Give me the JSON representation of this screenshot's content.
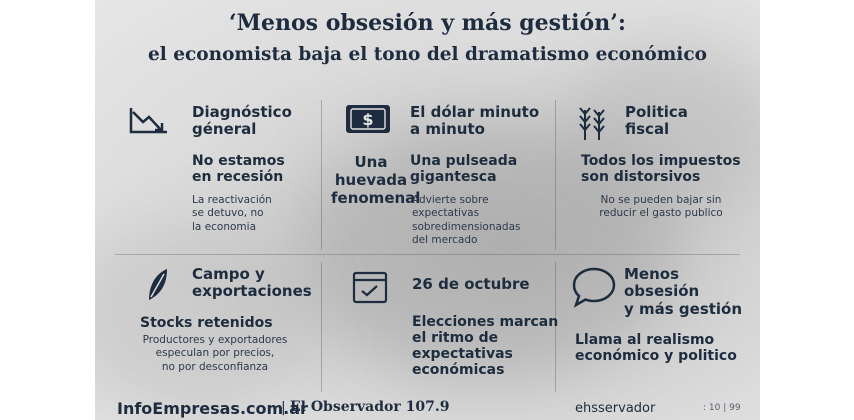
{
  "header": {
    "title": "‘Menos obsesión y más gestión’:",
    "subtitle": "el economista baja el tono del dramatismo económico"
  },
  "panels": {
    "diagnostico": {
      "title_l1": "Diagnóstico",
      "title_l2": "géneral",
      "main_l1": "No estamos",
      "main_l2": "en recesión",
      "note_l1": "La reactivación",
      "note_l2": "se detuvo, no",
      "note_l3": "la economia"
    },
    "dolar": {
      "title_l1": "El dólar minuto",
      "title_l2": "a minuto",
      "quote_l1": "Una",
      "quote_l2": "huevada",
      "quote_l3": "fenomenal",
      "main_l1": "Una pulseada",
      "main_l2": "gigantesca",
      "note_l1": "Advierte sobre",
      "note_l2": "expectativas",
      "note_l3": "sobredimensionadas",
      "note_l4": "del mercado"
    },
    "fiscal": {
      "title_l1": "Politica",
      "title_l2": "fiscal",
      "main_l1": "Todos los impuestos",
      "main_l2": "son distorsivos",
      "note_l1": "No se pueden bajar sin",
      "note_l2": "reducir el gasto publico"
    },
    "campo": {
      "title_l1": "Campo y",
      "title_l2": "exportaciones",
      "main": "Stocks retenidos",
      "note_l1": "Productores y exportadores",
      "note_l2": "especulan por precios,",
      "note_l3": "no por desconfianza"
    },
    "octubre": {
      "title": "26 de octubre",
      "main_l1": "Elecciones marcan",
      "main_l2": "el ritmo de",
      "main_l3": "expectativas",
      "main_l4": "económicas"
    },
    "menos": {
      "title_l1": "Menos",
      "title_l2": "obsesión",
      "title_l3": "y más gestión",
      "main_l1": "Llama al realismo",
      "main_l2": "económico y politico"
    }
  },
  "footer": {
    "brand": "InfoEmpresas.com.ar",
    "separator": "|",
    "radio": "El Observador 107.9",
    "right": "ehsservador",
    "page_num": ": 10 | 99"
  },
  "icons": {
    "diagnostico": "trend-down-icon",
    "dolar": "dollar-bill-icon",
    "fiscal": "wheat-icon",
    "campo": "leaf-icon",
    "octubre": "calendar-check-icon",
    "menos": "speech-bubble-icon"
  }
}
